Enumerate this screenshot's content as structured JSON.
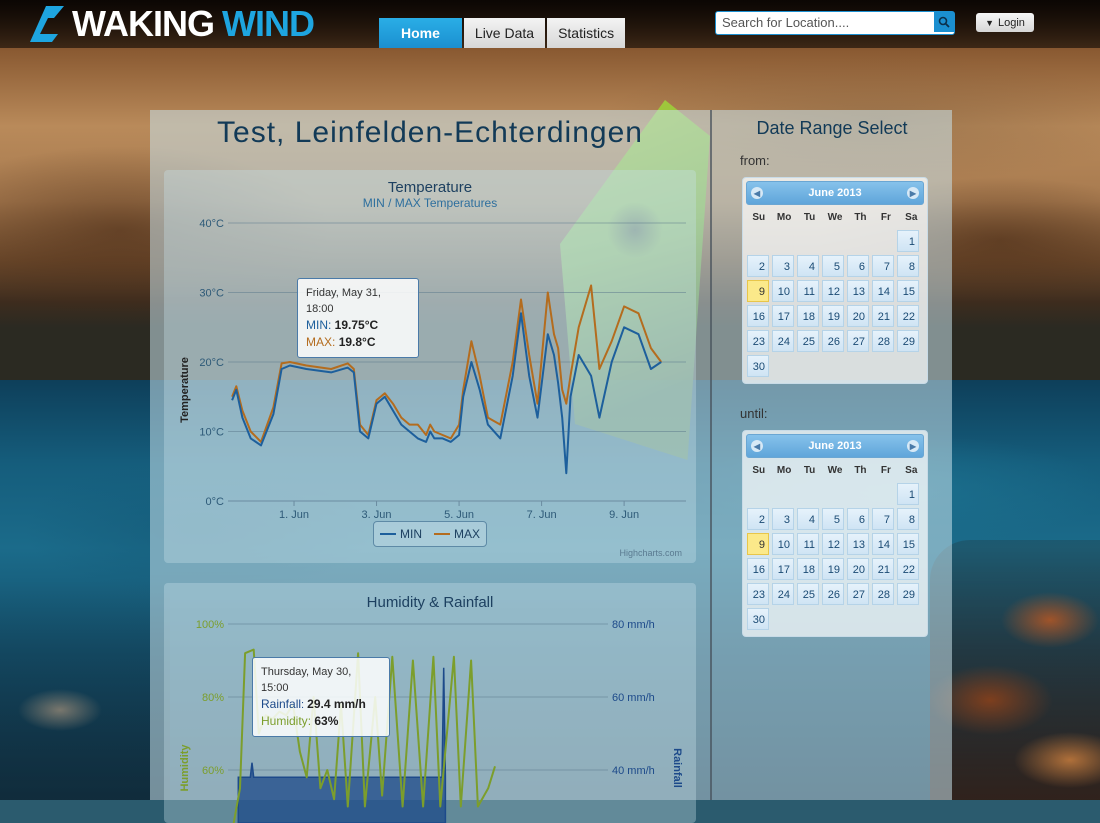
{
  "brand": {
    "part1": "WAKING",
    "part2": "WIND"
  },
  "nav": [
    {
      "label": "Home",
      "active": true
    },
    {
      "label": "Live Data",
      "active": false
    },
    {
      "label": "Statistics",
      "active": false
    }
  ],
  "search": {
    "placeholder": "Search for Location...."
  },
  "login": {
    "label": "Login"
  },
  "location_title": "Test, Leinfelden-Echterdingen",
  "colors": {
    "min": "#1d5f9c",
    "max": "#b46c1e",
    "humidity": "#7c9e2c",
    "rainfall": "#1d4a8a",
    "accent": "#1b8fd0"
  },
  "charts": {
    "temperature": {
      "title": "Temperature",
      "subtitle": "MIN / MAX Temperatures",
      "tooltip": {
        "date": "Friday, May 31, 18:00",
        "min_label": "MIN",
        "min_value": "19.75°C",
        "max_label": "MAX",
        "max_value": "19.8°C"
      },
      "legend": {
        "min": "MIN",
        "max": "MAX"
      },
      "credit": "Highcharts.com"
    },
    "humidity": {
      "title": "Humidity & Rainfall",
      "tooltip": {
        "date": "Thursday, May 30, 15:00",
        "rain_label": "Rainfall",
        "rain_value": "29.4 mm/h",
        "hum_label": "Humidity",
        "hum_value": "63%"
      }
    }
  },
  "chart_data": [
    {
      "type": "line",
      "title": "Temperature",
      "subtitle": "MIN / MAX Temperatures",
      "ylabel": "Temperature",
      "yticks": [
        "0°C",
        "10°C",
        "20°C",
        "30°C",
        "40°C"
      ],
      "ylim": [
        0,
        40
      ],
      "xlim": [
        -1.6,
        9.5
      ],
      "xticks": [
        {
          "label": "1. Jun",
          "x": 0
        },
        {
          "label": "3. Jun",
          "x": 2
        },
        {
          "label": "5. Jun",
          "x": 4
        },
        {
          "label": "7. Jun",
          "x": 6
        },
        {
          "label": "9. Jun",
          "x": 8
        }
      ],
      "grid": true,
      "legend": "bottom-center",
      "series": [
        {
          "name": "MIN",
          "points": [
            [
              -1.5,
              14.5
            ],
            [
              -1.4,
              16
            ],
            [
              -1.25,
              12
            ],
            [
              -1.05,
              9
            ],
            [
              -0.8,
              8
            ],
            [
              -0.5,
              12.5
            ],
            [
              -0.3,
              19
            ],
            [
              -0.1,
              19.5
            ],
            [
              0.3,
              19
            ],
            [
              0.9,
              18.5
            ],
            [
              1.3,
              19.2
            ],
            [
              1.45,
              18.5
            ],
            [
              1.6,
              10
            ],
            [
              1.8,
              9
            ],
            [
              2.0,
              14
            ],
            [
              2.2,
              15
            ],
            [
              2.4,
              13
            ],
            [
              2.6,
              11
            ],
            [
              2.8,
              10
            ],
            [
              3.0,
              9
            ],
            [
              3.2,
              8.5
            ],
            [
              3.3,
              10
            ],
            [
              3.4,
              9
            ],
            [
              3.6,
              9
            ],
            [
              3.8,
              8.5
            ],
            [
              4.0,
              9.5
            ],
            [
              4.1,
              15
            ],
            [
              4.3,
              20
            ],
            [
              4.5,
              16
            ],
            [
              4.7,
              11
            ],
            [
              5.0,
              9
            ],
            [
              5.3,
              18
            ],
            [
              5.5,
              27
            ],
            [
              5.7,
              18
            ],
            [
              5.9,
              12
            ],
            [
              6.15,
              24
            ],
            [
              6.3,
              21
            ],
            [
              6.4,
              17
            ],
            [
              6.5,
              12
            ],
            [
              6.6,
              4
            ],
            [
              6.7,
              15
            ],
            [
              6.9,
              21
            ],
            [
              7.2,
              18
            ],
            [
              7.4,
              12
            ],
            [
              7.7,
              20
            ],
            [
              8.0,
              25
            ],
            [
              8.35,
              24
            ],
            [
              8.65,
              19
            ],
            [
              8.9,
              20
            ]
          ]
        },
        {
          "name": "MAX",
          "points": [
            [
              -1.5,
              15
            ],
            [
              -1.4,
              16.5
            ],
            [
              -1.25,
              13
            ],
            [
              -1.05,
              10
            ],
            [
              -0.8,
              8.5
            ],
            [
              -0.5,
              13.5
            ],
            [
              -0.3,
              19.8
            ],
            [
              -0.1,
              20
            ],
            [
              0.3,
              19.5
            ],
            [
              0.9,
              19
            ],
            [
              1.3,
              19.8
            ],
            [
              1.45,
              19
            ],
            [
              1.6,
              11
            ],
            [
              1.8,
              9.5
            ],
            [
              2.0,
              14.5
            ],
            [
              2.2,
              15.5
            ],
            [
              2.4,
              14
            ],
            [
              2.6,
              12
            ],
            [
              2.8,
              11
            ],
            [
              3.0,
              11
            ],
            [
              3.2,
              9.5
            ],
            [
              3.3,
              11
            ],
            [
              3.4,
              10
            ],
            [
              3.6,
              9.5
            ],
            [
              3.8,
              9
            ],
            [
              4.0,
              11
            ],
            [
              4.1,
              16
            ],
            [
              4.3,
              23
            ],
            [
              4.5,
              18
            ],
            [
              4.7,
              12
            ],
            [
              5.0,
              11
            ],
            [
              5.3,
              20
            ],
            [
              5.5,
              29
            ],
            [
              5.7,
              21
            ],
            [
              5.9,
              14
            ],
            [
              6.15,
              30
            ],
            [
              6.3,
              24
            ],
            [
              6.4,
              22
            ],
            [
              6.5,
              16
            ],
            [
              6.6,
              14
            ],
            [
              6.7,
              18
            ],
            [
              6.9,
              25
            ],
            [
              7.2,
              31
            ],
            [
              7.4,
              19
            ],
            [
              7.7,
              23
            ],
            [
              8.0,
              28
            ],
            [
              8.35,
              27
            ],
            [
              8.65,
              22
            ],
            [
              8.9,
              20
            ]
          ]
        }
      ]
    },
    {
      "type": "line",
      "title": "Humidity & Rainfall",
      "ylabel": "Humidity",
      "y2label": "Rainfall",
      "yticks": [
        "60%",
        "80%",
        "100%"
      ],
      "ylim": [
        60,
        100
      ],
      "y2ticks": [
        "40 mm/h",
        "60 mm/h",
        "80 mm/h"
      ],
      "y2lim": [
        40,
        80
      ],
      "xlim": [
        -1.6,
        9.5
      ],
      "grid": true,
      "series": [
        {
          "name": "Humidity",
          "points": [
            [
              -1.5,
              42
            ],
            [
              -1.25,
              55
            ],
            [
              -1.1,
              92
            ],
            [
              -0.85,
              93
            ],
            [
              -0.7,
              70
            ],
            [
              -0.5,
              75
            ],
            [
              -0.3,
              74
            ],
            [
              -0.1,
              76
            ],
            [
              0.1,
              75
            ],
            [
              0.3,
              78
            ],
            [
              0.5,
              65
            ],
            [
              0.7,
              58
            ],
            [
              0.9,
              80
            ],
            [
              1.1,
              55
            ],
            [
              1.3,
              60
            ],
            [
              1.5,
              52
            ],
            [
              1.7,
              78
            ],
            [
              1.9,
              50
            ],
            [
              2.2,
              92
            ],
            [
              2.4,
              50
            ],
            [
              2.7,
              80
            ],
            [
              2.9,
              53
            ],
            [
              3.2,
              91
            ],
            [
              3.5,
              50
            ],
            [
              3.8,
              90
            ],
            [
              4.1,
              50
            ],
            [
              4.4,
              91
            ],
            [
              4.6,
              50
            ],
            [
              5.0,
              91
            ],
            [
              5.2,
              50
            ],
            [
              5.5,
              90
            ],
            [
              5.7,
              50
            ],
            [
              6.0,
              55
            ],
            [
              6.1,
              58
            ],
            [
              6.2,
              61
            ]
          ]
        },
        {
          "name": "Rainfall",
          "points": [
            [
              -1.3,
              38
            ],
            [
              -0.95,
              38
            ],
            [
              -0.9,
              42
            ],
            [
              -0.85,
              38
            ],
            [
              4.65,
              38
            ],
            [
              4.7,
              68
            ],
            [
              4.75,
              38
            ]
          ]
        }
      ]
    }
  ],
  "date_range": {
    "title": "Date Range Select",
    "from_label": "from:",
    "until_label": "until:",
    "calendars": [
      {
        "month": "June 2013",
        "dow": [
          "Su",
          "Mo",
          "Tu",
          "We",
          "Th",
          "Fr",
          "Sa"
        ],
        "days": [
          "",
          "",
          "",
          "",
          "",
          "",
          "1",
          "2",
          "3",
          "4",
          "5",
          "6",
          "7",
          "8",
          "9",
          "10",
          "11",
          "12",
          "13",
          "14",
          "15",
          "16",
          "17",
          "18",
          "19",
          "20",
          "21",
          "22",
          "23",
          "24",
          "25",
          "26",
          "27",
          "28",
          "29",
          "30"
        ],
        "highlight": "9"
      },
      {
        "month": "June 2013",
        "dow": [
          "Su",
          "Mo",
          "Tu",
          "We",
          "Th",
          "Fr",
          "Sa"
        ],
        "days": [
          "",
          "",
          "",
          "",
          "",
          "",
          "1",
          "2",
          "3",
          "4",
          "5",
          "6",
          "7",
          "8",
          "9",
          "10",
          "11",
          "12",
          "13",
          "14",
          "15",
          "16",
          "17",
          "18",
          "19",
          "20",
          "21",
          "22",
          "23",
          "24",
          "25",
          "26",
          "27",
          "28",
          "29",
          "30"
        ],
        "highlight": "9"
      }
    ]
  }
}
